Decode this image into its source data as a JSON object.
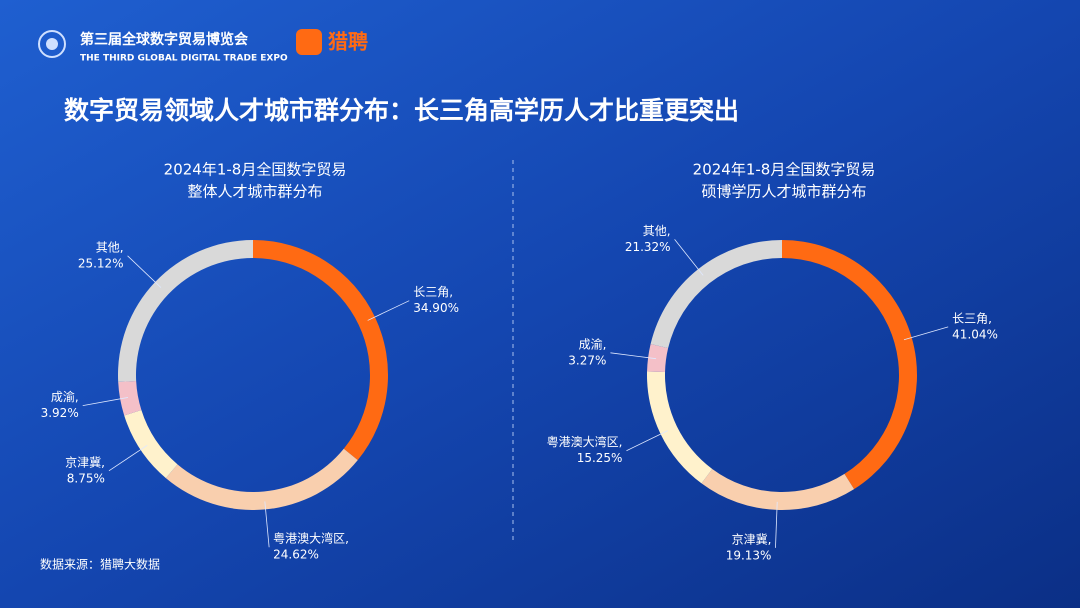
{
  "header": {
    "expo_name": "第三届全球数字贸易博览会",
    "expo_name_en": "THE THIRD GLOBAL DIGITAL TRADE EXPO",
    "brand": "猎聘"
  },
  "title": "数字贸易领域人才城市群分布：长三角高学历人才比重更突出",
  "source": "数据来源：猎聘大数据",
  "chart_data": [
    {
      "type": "pie",
      "title": "2024年1-8月全国数字贸易",
      "subtitle": "整体人才城市群分布",
      "categories": [
        "长三角,",
        "粤港澳大湾区,",
        "京津冀,",
        "成渝,",
        "其他,"
      ],
      "values": [
        34.9,
        24.62,
        8.75,
        3.92,
        25.12
      ],
      "value_labels": [
        "34.90%",
        "24.62%",
        "8.75%",
        "3.92%",
        "25.12%"
      ],
      "colors": [
        "#ff6a13",
        "#f9cfae",
        "#fff2cc",
        "#f4c0c8",
        "#d9d9d9"
      ]
    },
    {
      "type": "pie",
      "title": "2024年1-8月全国数字贸易",
      "subtitle": "硕博学历人才城市群分布",
      "categories": [
        "长三角,",
        "京津冀,",
        "粤港澳大湾区,",
        "成渝,",
        "其他,"
      ],
      "values": [
        41.04,
        19.13,
        15.25,
        3.27,
        21.32
      ],
      "value_labels": [
        "41.04%",
        "19.13%",
        "15.25%",
        "3.27%",
        "21.32%"
      ],
      "colors": [
        "#ff6a13",
        "#f9cfae",
        "#fff2cc",
        "#f4c0c8",
        "#d9d9d9"
      ]
    }
  ]
}
